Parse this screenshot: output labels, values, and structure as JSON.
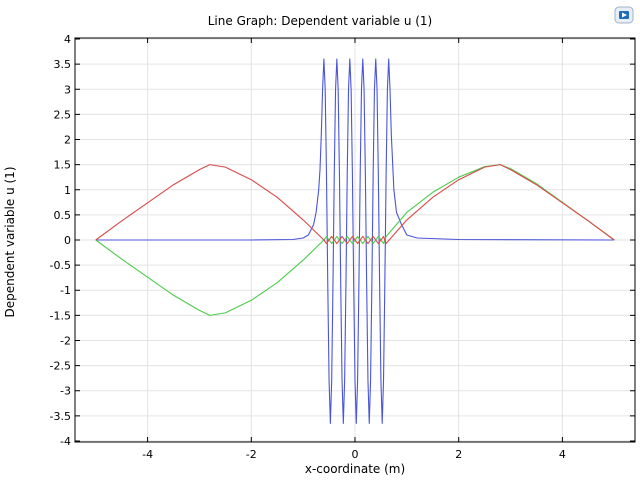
{
  "window": {
    "logo_icon": "comsol-logo-icon"
  },
  "chart_data": {
    "type": "line",
    "title": "Line Graph: Dependent variable u (1)",
    "xlabel": "x-coordinate (m)",
    "ylabel": "Dependent variable u (1)",
    "xlim": [
      -5.4,
      5.4
    ],
    "ylim": [
      -4.02,
      4.02
    ],
    "x_ticks": [
      -4,
      -2,
      0,
      2,
      4
    ],
    "y_ticks": [
      -4,
      -3.5,
      -3,
      -2.5,
      -2,
      -1.5,
      -1,
      -0.5,
      0,
      0.5,
      1,
      1.5,
      2,
      2.5,
      3,
      3.5,
      4
    ],
    "x_tick_labels": [
      "-4",
      "-2",
      "0",
      "2",
      "4"
    ],
    "y_tick_labels": [
      "-4",
      "-3.5",
      "-3",
      "-2.5",
      "-2",
      "-1.5",
      "-1",
      "-0.5",
      "0",
      "0.5",
      "1",
      "1.5",
      "2",
      "2.5",
      "3",
      "3.5",
      "4"
    ],
    "grid": true,
    "series": [
      {
        "color": "#4a55d9",
        "x": [
          -5,
          -2,
          -1.2,
          -1,
          -0.9,
          -0.8,
          -0.75,
          -0.7,
          -0.675,
          -0.65,
          -0.625,
          -0.6,
          -0.575,
          -0.55,
          -0.525,
          -0.5,
          -0.475,
          -0.45,
          -0.425,
          -0.4,
          -0.375,
          -0.35,
          -0.325,
          -0.3,
          -0.275,
          -0.25,
          -0.225,
          -0.2,
          -0.175,
          -0.15,
          -0.125,
          -0.1,
          -0.075,
          -0.05,
          -0.025,
          0,
          0.025,
          0.05,
          0.075,
          0.1,
          0.125,
          0.15,
          0.175,
          0.2,
          0.225,
          0.25,
          0.275,
          0.3,
          0.325,
          0.35,
          0.375,
          0.4,
          0.425,
          0.45,
          0.475,
          0.5,
          0.525,
          0.55,
          0.575,
          0.6,
          0.625,
          0.65,
          0.675,
          0.7,
          0.75,
          0.8,
          0.9,
          1,
          1.2,
          2,
          5
        ],
        "y": [
          0,
          0,
          0.01,
          0.04,
          0.1,
          0.3,
          0.55,
          1,
          1.4,
          2.1,
          3.0,
          3.6,
          3.0,
          1.3,
          -0.9,
          -2.8,
          -3.65,
          -2.8,
          -0.9,
          1.3,
          3.0,
          3.6,
          3.0,
          1.3,
          -0.9,
          -2.8,
          -3.65,
          -2.8,
          -0.9,
          1.3,
          3.0,
          3.6,
          3.0,
          1.3,
          -0.9,
          -2.8,
          -3.65,
          -2.8,
          -0.9,
          1.3,
          3.0,
          3.6,
          3.0,
          1.3,
          -0.9,
          -2.8,
          -3.65,
          -2.8,
          -0.9,
          1.3,
          3.0,
          3.6,
          3.0,
          1.3,
          -0.9,
          -2.8,
          -3.65,
          -2.8,
          -0.9,
          1.3,
          3.0,
          3.6,
          3.0,
          2.1,
          1.0,
          0.55,
          0.3,
          0.1,
          0.04,
          0.01,
          0
        ]
      },
      {
        "color": "#d94a4a",
        "x": [
          -5,
          -4.5,
          -4,
          -3.5,
          -3,
          -2.8,
          -2.5,
          -2,
          -1.5,
          -1,
          -0.6,
          -0.55,
          -0.45,
          -0.35,
          -0.25,
          -0.15,
          -0.05,
          0.05,
          0.15,
          0.25,
          0.35,
          0.45,
          0.55,
          0.6,
          1,
          1.5,
          2,
          2.5,
          2.8,
          3,
          3.5,
          4,
          4.5,
          5
        ],
        "y": [
          0,
          0.38,
          0.74,
          1.1,
          1.4,
          1.5,
          1.45,
          1.2,
          0.85,
          0.4,
          0,
          -0.07,
          0.07,
          -0.07,
          0.07,
          -0.07,
          0.07,
          -0.07,
          0.07,
          -0.07,
          0.07,
          -0.07,
          0.07,
          -0.07,
          0.4,
          0.85,
          1.2,
          1.45,
          1.5,
          1.4,
          1.1,
          0.74,
          0.38,
          0
        ]
      },
      {
        "color": "#4ccc4c",
        "x": [
          -5,
          -4.5,
          -4,
          -3.5,
          -3,
          -2.8,
          -2.5,
          -2,
          -1.5,
          -1,
          -0.6,
          -0.55,
          -0.45,
          -0.35,
          -0.25,
          -0.15,
          -0.05,
          0.05,
          0.15,
          0.25,
          0.35,
          0.45,
          0.55,
          0.6,
          1,
          1.5,
          2,
          2.5,
          2.8,
          3,
          3.5,
          4,
          4.5,
          5
        ],
        "y": [
          0,
          -0.38,
          -0.74,
          -1.1,
          -1.4,
          -1.5,
          -1.45,
          -1.2,
          -0.85,
          -0.4,
          0,
          0.07,
          -0.07,
          0.07,
          -0.07,
          0.07,
          -0.07,
          0.07,
          -0.07,
          0.07,
          -0.07,
          0.07,
          -0.07,
          0.07,
          0.55,
          0.95,
          1.25,
          1.46,
          1.5,
          1.42,
          1.12,
          0.75,
          0.38,
          0
        ]
      }
    ]
  }
}
